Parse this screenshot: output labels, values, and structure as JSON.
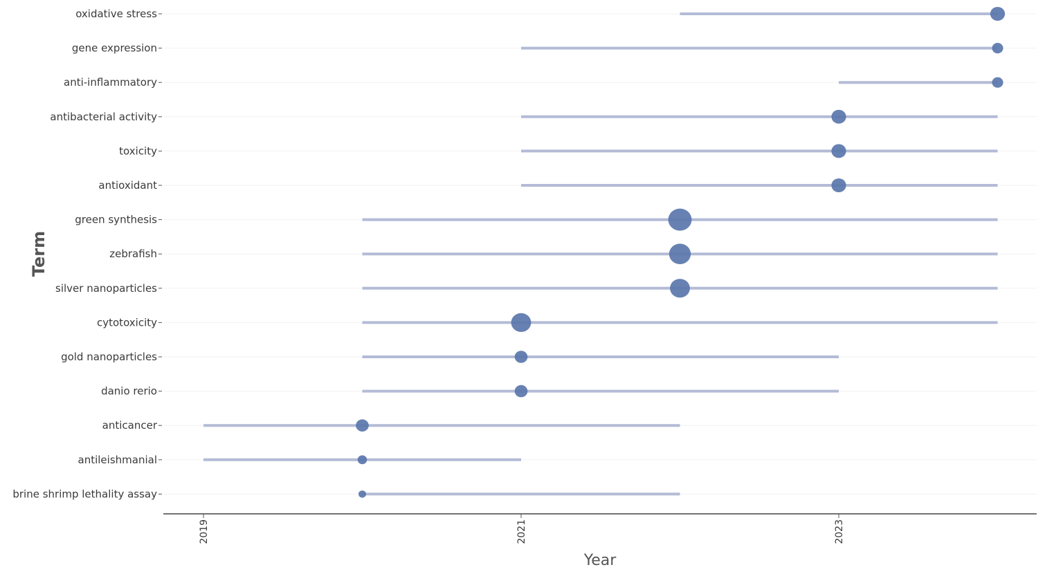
{
  "chart_data": {
    "type": "scatter",
    "xlabel": "Year",
    "ylabel": "Term",
    "xlim": [
      2019,
      2024
    ],
    "x_ticks": [
      "2019",
      "2021",
      "2023"
    ],
    "grid": true,
    "colors": {
      "line": "#b3bbd6",
      "point": "#5a76ab",
      "axis": "#444444",
      "grid": "#f2f2f2"
    },
    "terms": [
      {
        "term": "oxidative stress",
        "start": 2022,
        "end": 2024,
        "peak": 2024,
        "freq": 5
      },
      {
        "term": "gene expression",
        "start": 2021,
        "end": 2024,
        "peak": 2024,
        "freq": 3
      },
      {
        "term": "anti-inflammatory",
        "start": 2023,
        "end": 2024,
        "peak": 2024,
        "freq": 3
      },
      {
        "term": "antibacterial activity",
        "start": 2021,
        "end": 2024,
        "peak": 2023,
        "freq": 5
      },
      {
        "term": "toxicity",
        "start": 2021,
        "end": 2024,
        "peak": 2023,
        "freq": 5
      },
      {
        "term": "antioxidant",
        "start": 2021,
        "end": 2024,
        "peak": 2023,
        "freq": 5
      },
      {
        "term": "green synthesis",
        "start": 2020,
        "end": 2024,
        "peak": 2022,
        "freq": 10
      },
      {
        "term": "zebrafish",
        "start": 2020,
        "end": 2024,
        "peak": 2022,
        "freq": 9
      },
      {
        "term": "silver nanoparticles",
        "start": 2020,
        "end": 2024,
        "peak": 2022,
        "freq": 8
      },
      {
        "term": "cytotoxicity",
        "start": 2020,
        "end": 2024,
        "peak": 2021,
        "freq": 8
      },
      {
        "term": "gold nanoparticles",
        "start": 2020,
        "end": 2023,
        "peak": 2021,
        "freq": 4
      },
      {
        "term": "danio rerio",
        "start": 2020,
        "end": 2023,
        "peak": 2021,
        "freq": 4
      },
      {
        "term": "anticancer",
        "start": 2019,
        "end": 2022,
        "peak": 2020,
        "freq": 4
      },
      {
        "term": "antileishmanial",
        "start": 2019,
        "end": 2021,
        "peak": 2020,
        "freq": 2
      },
      {
        "term": "brine shrimp lethality assay",
        "start": 2020,
        "end": 2022,
        "peak": 2020,
        "freq": 1
      }
    ]
  }
}
